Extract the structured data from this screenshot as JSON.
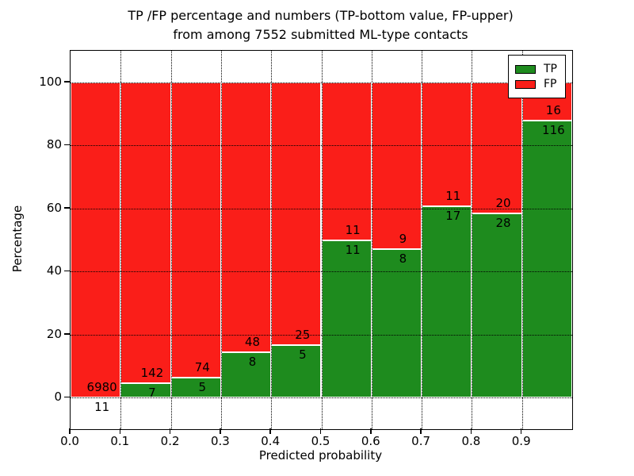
{
  "chart_data": {
    "type": "bar",
    "stacked": true,
    "normalized_to_percent": true,
    "title_line1": "TP /FP percentage and numbers (TP-bottom value, FP-upper)",
    "title_line2": "from among 7552 submitted ML-type contacts",
    "xlabel": "Predicted probability",
    "ylabel": "Percentage",
    "categories": [
      "0.0-0.1",
      "0.1-0.2",
      "0.2-0.3",
      "0.3-0.4",
      "0.4-0.5",
      "0.5-0.6",
      "0.6-0.7",
      "0.7-0.8",
      "0.8-0.9",
      "0.9-1.0"
    ],
    "series": [
      {
        "name": "TP",
        "color": "#1e8b1e",
        "counts": [
          11,
          7,
          5,
          8,
          5,
          11,
          8,
          17,
          28,
          116
        ]
      },
      {
        "name": "FP",
        "color": "#fa1e19",
        "counts": [
          6980,
          142,
          74,
          48,
          25,
          11,
          9,
          11,
          20,
          16
        ]
      }
    ],
    "tp_percent": [
      0.16,
      4.7,
      6.33,
      14.29,
      16.67,
      50.0,
      47.06,
      60.71,
      58.33,
      87.88
    ],
    "legend": [
      {
        "label": "TP",
        "color": "#1e8b1e"
      },
      {
        "label": "FP",
        "color": "#fa1e19"
      }
    ],
    "legend_position": "upper right",
    "x_tick_values": [
      0.0,
      0.1,
      0.2,
      0.3,
      0.4,
      0.5,
      0.6,
      0.7,
      0.8,
      0.9
    ],
    "x_tick_labels": [
      "0.0",
      "0.1",
      "0.2",
      "0.3",
      "0.4",
      "0.5",
      "0.6",
      "0.7",
      "0.8",
      "0.9"
    ],
    "y_tick_values": [
      0,
      20,
      40,
      60,
      80,
      100
    ],
    "y_tick_labels": [
      "0",
      "20",
      "40",
      "60",
      "80",
      "100"
    ],
    "xlim": [
      0.0,
      1.0
    ],
    "ylim": [
      -10,
      110
    ],
    "grid": true,
    "grid_style": "dotted"
  }
}
